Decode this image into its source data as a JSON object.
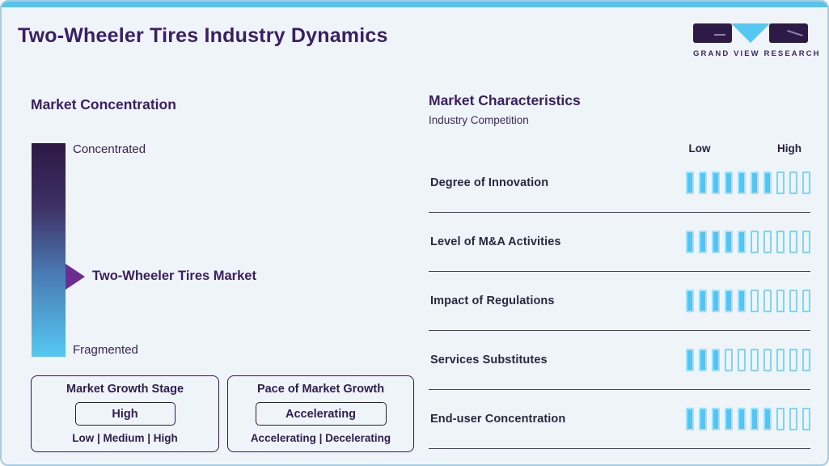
{
  "header": {
    "title": "Two-Wheeler Tires Industry Dynamics"
  },
  "logo": {
    "text": "GRAND VIEW RESEARCH"
  },
  "market_concentration": {
    "heading": "Market Concentration",
    "scale_top_label": "Concentrated",
    "scale_bottom_label": "Fragmented",
    "pointer_label": "Two-Wheeler Tires Market",
    "growth_stage_box": {
      "title": "Market Growth Stage",
      "value": "High",
      "options": "Low | Medium | High"
    },
    "pace_box": {
      "title": "Pace of Market Growth",
      "value": "Accelerating",
      "options": "Accelerating | Decelerating"
    }
  },
  "market_characteristics": {
    "heading": "Market Characteristics",
    "subheading": "Industry Competition",
    "scale_low_label": "Low",
    "scale_high_label": "High",
    "rows": [
      {
        "label": "Degree of Innovation",
        "filled": 7,
        "total": 10
      },
      {
        "label": "Level of M&A Activities",
        "filled": 5,
        "total": 10
      },
      {
        "label": "Impact of Regulations",
        "filled": 5,
        "total": 10
      },
      {
        "label": "Services Substitutes",
        "filled": 3,
        "total": 10
      },
      {
        "label": "End-user Concentration",
        "filled": 7,
        "total": 10
      }
    ]
  },
  "chart_data": {
    "type": "bar",
    "title": "Market Characteristics — Industry Competition",
    "categories": [
      "Degree of Innovation",
      "Level of M&A Activities",
      "Impact of Regulations",
      "Services Substitutes",
      "End-user Concentration"
    ],
    "values": [
      7,
      5,
      5,
      3,
      7
    ],
    "scale": {
      "min": 0,
      "max": 10,
      "min_label": "Low",
      "max_label": "High"
    },
    "legend": "filled segments out of 10 between Low and High",
    "related_facts": {
      "market_concentration_pointer": "Two-Wheeler Tires Market (between Concentrated and Fragmented)",
      "market_growth_stage": "High",
      "pace_of_market_growth": "Accelerating"
    }
  },
  "colors": {
    "accent_blue": "#55c8f2",
    "dark_purple": "#2e1a47",
    "heading_purple": "#3a2063",
    "arrow_purple": "#6c2c91",
    "background": "#eff4f8",
    "divider": "#45415a",
    "top_strip": "#58c3ed"
  }
}
